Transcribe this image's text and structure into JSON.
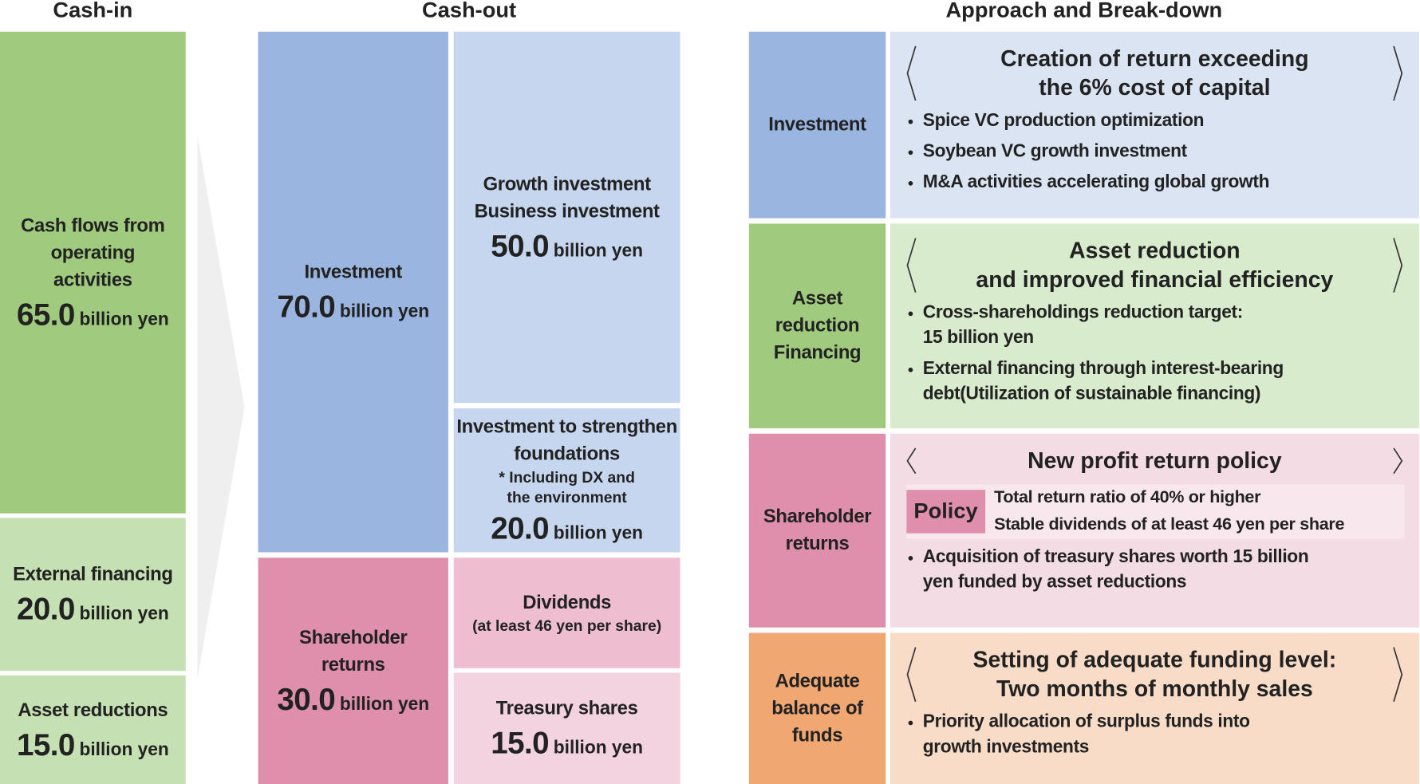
{
  "cash_in": {
    "title": "Cash-in",
    "items": [
      {
        "label": [
          "Cash flows from",
          "operating",
          "activities"
        ],
        "amount": "65.0",
        "unit": "billion yen"
      },
      {
        "label": [
          "External financing"
        ],
        "amount": "20.0",
        "unit": "billion yen"
      },
      {
        "label": [
          "Asset reductions"
        ],
        "amount": "15.0",
        "unit": "billion yen"
      }
    ]
  },
  "cash_out": {
    "title": "Cash-out",
    "groups": [
      {
        "label": [
          "Investment"
        ],
        "amount": "70.0",
        "unit": "billion yen",
        "items": [
          {
            "label": [
              "Growth investment",
              "Business investment"
            ],
            "amount": "50.0",
            "unit": "billion yen"
          },
          {
            "label": [
              "Investment to strengthen",
              "foundations"
            ],
            "note": [
              "* Including DX and",
              "the environment"
            ],
            "amount": "20.0",
            "unit": "billion yen"
          }
        ]
      },
      {
        "label": [
          "Shareholder",
          "returns"
        ],
        "amount": "30.0",
        "unit": "billion yen",
        "items": [
          {
            "label": [
              "Dividends"
            ],
            "note": [
              "(at least 46 yen per share)"
            ]
          },
          {
            "label": [
              "Treasury shares"
            ],
            "amount": "15.0",
            "unit": "billion yen"
          }
        ]
      }
    ]
  },
  "approach": {
    "title": "Approach and Break-down",
    "rows": [
      {
        "label": [
          "Investment"
        ],
        "heading": [
          "Creation of return exceeding",
          "the 6% cost of capital"
        ],
        "bullets": [
          [
            "Spice VC production optimization"
          ],
          [
            "Soybean VC growth investment"
          ],
          [
            "M&A activities accelerating global growth"
          ]
        ]
      },
      {
        "label": [
          "Asset",
          "reduction",
          "Financing"
        ],
        "heading": [
          "Asset reduction",
          "and improved financial efficiency"
        ],
        "bullets": [
          [
            "Cross-shareholdings reduction target:",
            "15 billion yen"
          ],
          [
            "External financing through interest-bearing",
            "debt(Utilization of sustainable financing)"
          ]
        ]
      },
      {
        "label": [
          "Shareholder",
          "returns"
        ],
        "heading": [
          "New profit return policy"
        ],
        "policy": {
          "badge": "Policy",
          "lines": [
            "Total return ratio of 40% or higher",
            "Stable dividends of at least 46 yen per share"
          ]
        },
        "bullets": [
          [
            "Acquisition of treasury shares worth 15 billion",
            "yen funded by asset reductions"
          ]
        ]
      },
      {
        "label": [
          "Adequate",
          "balance of",
          "funds"
        ],
        "heading": [
          "Setting of adequate funding level:",
          "Two months of monthly sales"
        ],
        "bullets": [
          [
            "Priority allocation of surplus funds into",
            "growth investments"
          ]
        ]
      }
    ]
  }
}
